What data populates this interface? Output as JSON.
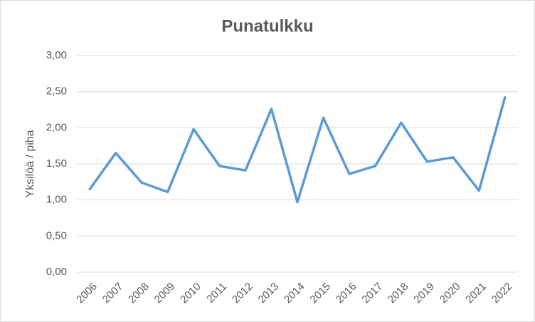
{
  "chart_data": {
    "type": "line",
    "title": "Punatulkku",
    "y_label": "Yksilöä / piha",
    "categories": [
      "2006",
      "2007",
      "2008",
      "2009",
      "2010",
      "2011",
      "2012",
      "2013",
      "2014",
      "2015",
      "2016",
      "2017",
      "2018",
      "2019",
      "2020",
      "2021",
      "2022"
    ],
    "values": [
      1.15,
      1.65,
      1.24,
      1.11,
      1.98,
      1.47,
      1.41,
      2.26,
      0.97,
      2.14,
      1.36,
      1.47,
      2.07,
      1.53,
      1.59,
      1.13,
      2.42
    ],
    "color": "#5b9bd5",
    "ylim": [
      0,
      3
    ],
    "yticks": [
      {
        "value": 0,
        "label": "0,00"
      },
      {
        "value": 0.5,
        "label": "0,50"
      },
      {
        "value": 1,
        "label": "1,00"
      },
      {
        "value": 1.5,
        "label": "1,50"
      },
      {
        "value": 2,
        "label": "2,00"
      },
      {
        "value": 2.5,
        "label": "2,50"
      },
      {
        "value": 3,
        "label": "3,00"
      }
    ],
    "grid": true
  }
}
